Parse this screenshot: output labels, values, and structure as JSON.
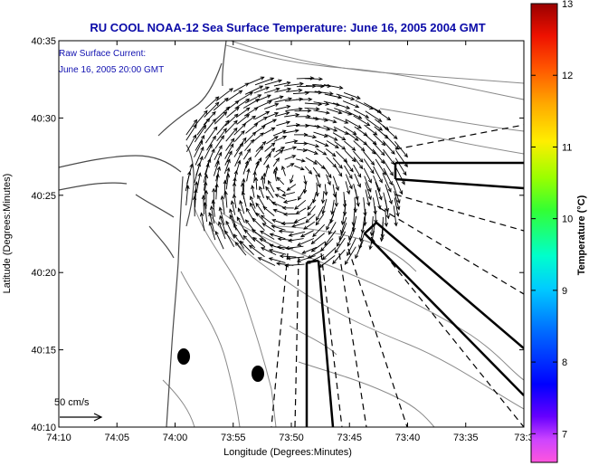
{
  "title": "RU COOL  NOAA-12  Sea Surface Temperature:  June 16, 2005 2004 GMT",
  "annotation": {
    "line1": "Raw Surface Current:",
    "line2": "June 16, 2005 20:00 GMT"
  },
  "scale": {
    "label": "50 cm/s"
  },
  "axes": {
    "xlabel": "Longitude (Degrees:Minutes)",
    "ylabel": "Latitude (Degrees:Minutes)",
    "x_ticks": [
      "74:10",
      "74:05",
      "74:00",
      "73:55",
      "73:50",
      "73:45",
      "73:40",
      "73:35",
      "73:3"
    ],
    "y_ticks": [
      "40:35",
      "40:30",
      "40:25",
      "40:20",
      "40:15",
      "40:10"
    ],
    "x_range_minutes_west": [
      10,
      30
    ],
    "y_range_minutes_north": [
      10,
      35
    ]
  },
  "colorbar": {
    "label": "Temperature (°C)",
    "ticks": [
      "13",
      "12",
      "11",
      "10",
      "9",
      "8",
      "7"
    ],
    "range": [
      6.6,
      13
    ]
  },
  "colors": {
    "title": "#0a0aa8",
    "contour": "#8a8a8a",
    "coast": "#4a4a4a",
    "arrow": "#000000"
  }
}
